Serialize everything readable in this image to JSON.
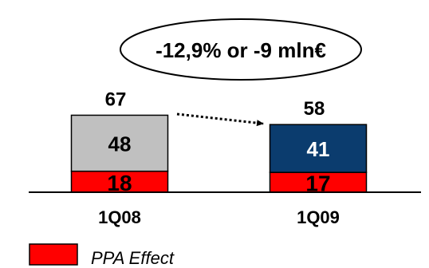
{
  "chart_data": {
    "type": "bar",
    "stacked": true,
    "categories": [
      "1Q08",
      "1Q09"
    ],
    "series": [
      {
        "name": "PPA Effect",
        "values": [
          18,
          17
        ],
        "color": "#ff0000"
      },
      {
        "values": [
          48,
          41
        ],
        "colors": [
          "#c0c0c0",
          "#0b3c6e"
        ],
        "label_colors": [
          "#000000",
          "#ffffff"
        ]
      }
    ],
    "totals": [
      67,
      58
    ],
    "annotation": "-12,9% or -9 mln€",
    "title": "",
    "xlabel": "",
    "ylabel": "",
    "ylim": [
      0,
      67
    ],
    "grid": false,
    "legend": {
      "position": "bottom-left",
      "entries": [
        "PPA Effect"
      ]
    }
  }
}
